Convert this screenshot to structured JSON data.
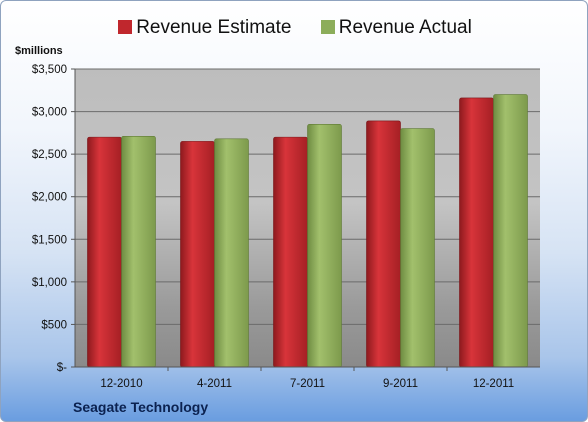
{
  "chart_data": {
    "type": "bar",
    "ylabel": "$millions",
    "caption": "Seagate Technology",
    "categories": [
      "12-2010",
      "4-2011",
      "7-2011",
      "9-2011",
      "12-2011"
    ],
    "series": [
      {
        "name": "Revenue Estimate",
        "color": "#c0272d",
        "values": [
          2700,
          2650,
          2700,
          2890,
          3160
        ]
      },
      {
        "name": "Revenue Actual",
        "color": "#8cad5a",
        "values": [
          2710,
          2680,
          2850,
          2800,
          3200
        ]
      }
    ],
    "ylim": [
      0,
      3500
    ],
    "yticks": [
      0,
      500,
      1000,
      1500,
      2000,
      2500,
      3000,
      3500
    ],
    "ytick_labels": [
      "$-",
      "$500",
      "$1,000",
      "$1,500",
      "$2,000",
      "$2,500",
      "$3,000",
      "$3,500"
    ],
    "grid": true,
    "legend_position": "top"
  }
}
